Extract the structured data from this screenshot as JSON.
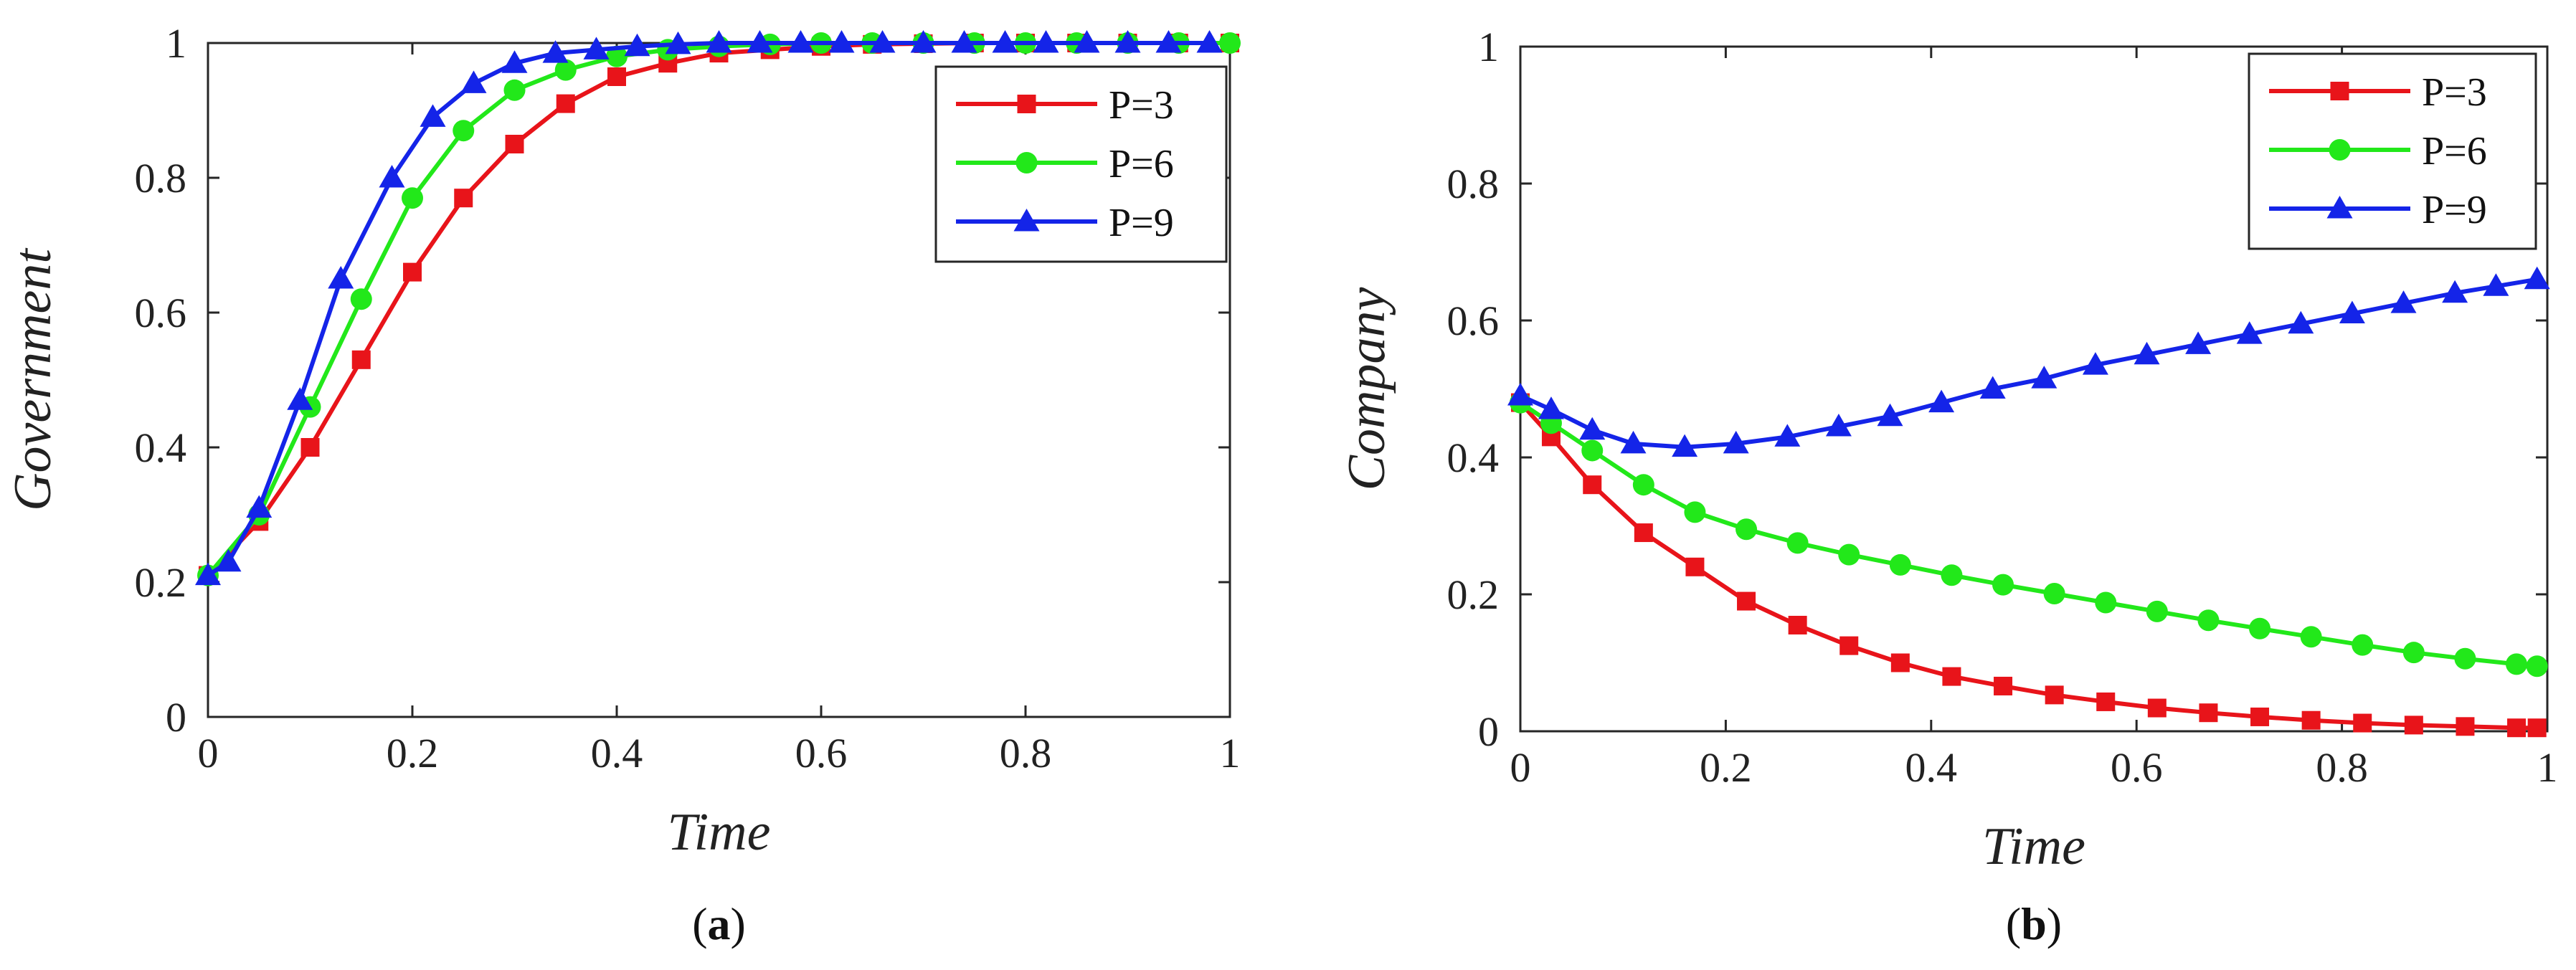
{
  "chart_data": [
    {
      "type": "line",
      "panel_label": {
        "open": "(",
        "letter": "a",
        "close": ")"
      },
      "xlabel": "Time",
      "ylabel": "Government",
      "xlim": [
        0,
        1
      ],
      "ylim": [
        0,
        1
      ],
      "xticks": [
        "0",
        "0.2",
        "0.4",
        "0.6",
        "0.8",
        "1"
      ],
      "yticks": [
        "0",
        "0.2",
        "0.4",
        "0.6",
        "0.8",
        "1"
      ],
      "legend_position": "top-right",
      "series": [
        {
          "name": "P=3",
          "color": "#e8141a",
          "marker": "square",
          "x": [
            0,
            0.05,
            0.1,
            0.15,
            0.2,
            0.25,
            0.3,
            0.35,
            0.4,
            0.45,
            0.5,
            0.55,
            0.6,
            0.65,
            0.7,
            0.75,
            0.8,
            0.85,
            0.9,
            0.95,
            1.0
          ],
          "y": [
            0.21,
            0.29,
            0.4,
            0.53,
            0.66,
            0.77,
            0.85,
            0.91,
            0.95,
            0.97,
            0.985,
            0.99,
            0.995,
            0.998,
            0.999,
            1.0,
            1.0,
            1.0,
            1.0,
            1.0,
            1.0
          ]
        },
        {
          "name": "P=6",
          "color": "#22e81a",
          "marker": "circle",
          "x": [
            0,
            0.05,
            0.1,
            0.15,
            0.2,
            0.25,
            0.3,
            0.35,
            0.4,
            0.45,
            0.5,
            0.55,
            0.6,
            0.65,
            0.7,
            0.75,
            0.8,
            0.85,
            0.9,
            0.95,
            1.0
          ],
          "y": [
            0.21,
            0.3,
            0.46,
            0.62,
            0.77,
            0.87,
            0.93,
            0.96,
            0.98,
            0.99,
            0.995,
            0.998,
            1.0,
            1.0,
            1.0,
            1.0,
            1.0,
            1.0,
            1.0,
            1.0,
            1.0
          ]
        },
        {
          "name": "P=9",
          "color": "#1424e8",
          "marker": "triangle",
          "x": [
            0,
            0.02,
            0.05,
            0.09,
            0.13,
            0.18,
            0.22,
            0.26,
            0.3,
            0.34,
            0.38,
            0.42,
            0.46,
            0.5,
            0.54,
            0.58,
            0.62,
            0.66,
            0.7,
            0.74,
            0.78,
            0.82,
            0.86,
            0.9,
            0.94,
            0.98
          ],
          "y": [
            0.21,
            0.23,
            0.31,
            0.47,
            0.65,
            0.8,
            0.89,
            0.94,
            0.97,
            0.985,
            0.99,
            0.995,
            0.998,
            1.0,
            1.0,
            1.0,
            1.0,
            1.0,
            1.0,
            1.0,
            1.0,
            1.0,
            1.0,
            1.0,
            1.0,
            1.0
          ]
        }
      ]
    },
    {
      "type": "line",
      "panel_label": {
        "open": "(",
        "letter": "b",
        "close": ")"
      },
      "xlabel": "Time",
      "ylabel": "Company",
      "xlim": [
        0,
        1
      ],
      "ylim": [
        0,
        1
      ],
      "xticks": [
        "0",
        "0.2",
        "0.4",
        "0.6",
        "0.8",
        "1"
      ],
      "yticks": [
        "0",
        "0.2",
        "0.4",
        "0.6",
        "0.8",
        "1"
      ],
      "legend_position": "top-right",
      "series": [
        {
          "name": "P=3",
          "color": "#e8141a",
          "marker": "square",
          "x": [
            0,
            0.03,
            0.07,
            0.12,
            0.17,
            0.22,
            0.27,
            0.32,
            0.37,
            0.42,
            0.47,
            0.52,
            0.57,
            0.62,
            0.67,
            0.72,
            0.77,
            0.82,
            0.87,
            0.92,
            0.97,
            0.99
          ],
          "y": [
            0.48,
            0.43,
            0.36,
            0.29,
            0.24,
            0.19,
            0.155,
            0.125,
            0.1,
            0.08,
            0.066,
            0.053,
            0.043,
            0.034,
            0.027,
            0.021,
            0.016,
            0.012,
            0.009,
            0.007,
            0.005,
            0.005
          ]
        },
        {
          "name": "P=6",
          "color": "#22e81a",
          "marker": "circle",
          "x": [
            0,
            0.03,
            0.07,
            0.12,
            0.17,
            0.22,
            0.27,
            0.32,
            0.37,
            0.42,
            0.47,
            0.52,
            0.57,
            0.62,
            0.67,
            0.72,
            0.77,
            0.82,
            0.87,
            0.92,
            0.97,
            0.99
          ],
          "y": [
            0.48,
            0.45,
            0.41,
            0.36,
            0.32,
            0.295,
            0.275,
            0.258,
            0.243,
            0.228,
            0.214,
            0.201,
            0.188,
            0.175,
            0.162,
            0.15,
            0.138,
            0.126,
            0.115,
            0.106,
            0.098,
            0.095
          ]
        },
        {
          "name": "P=9",
          "color": "#1424e8",
          "marker": "triangle",
          "x": [
            0,
            0.03,
            0.07,
            0.11,
            0.16,
            0.21,
            0.26,
            0.31,
            0.36,
            0.41,
            0.46,
            0.51,
            0.56,
            0.61,
            0.66,
            0.71,
            0.76,
            0.81,
            0.86,
            0.91,
            0.95,
            0.99
          ],
          "y": [
            0.49,
            0.47,
            0.44,
            0.42,
            0.415,
            0.42,
            0.43,
            0.445,
            0.46,
            0.48,
            0.5,
            0.515,
            0.535,
            0.55,
            0.565,
            0.58,
            0.595,
            0.61,
            0.625,
            0.64,
            0.65,
            0.66
          ]
        }
      ]
    }
  ]
}
